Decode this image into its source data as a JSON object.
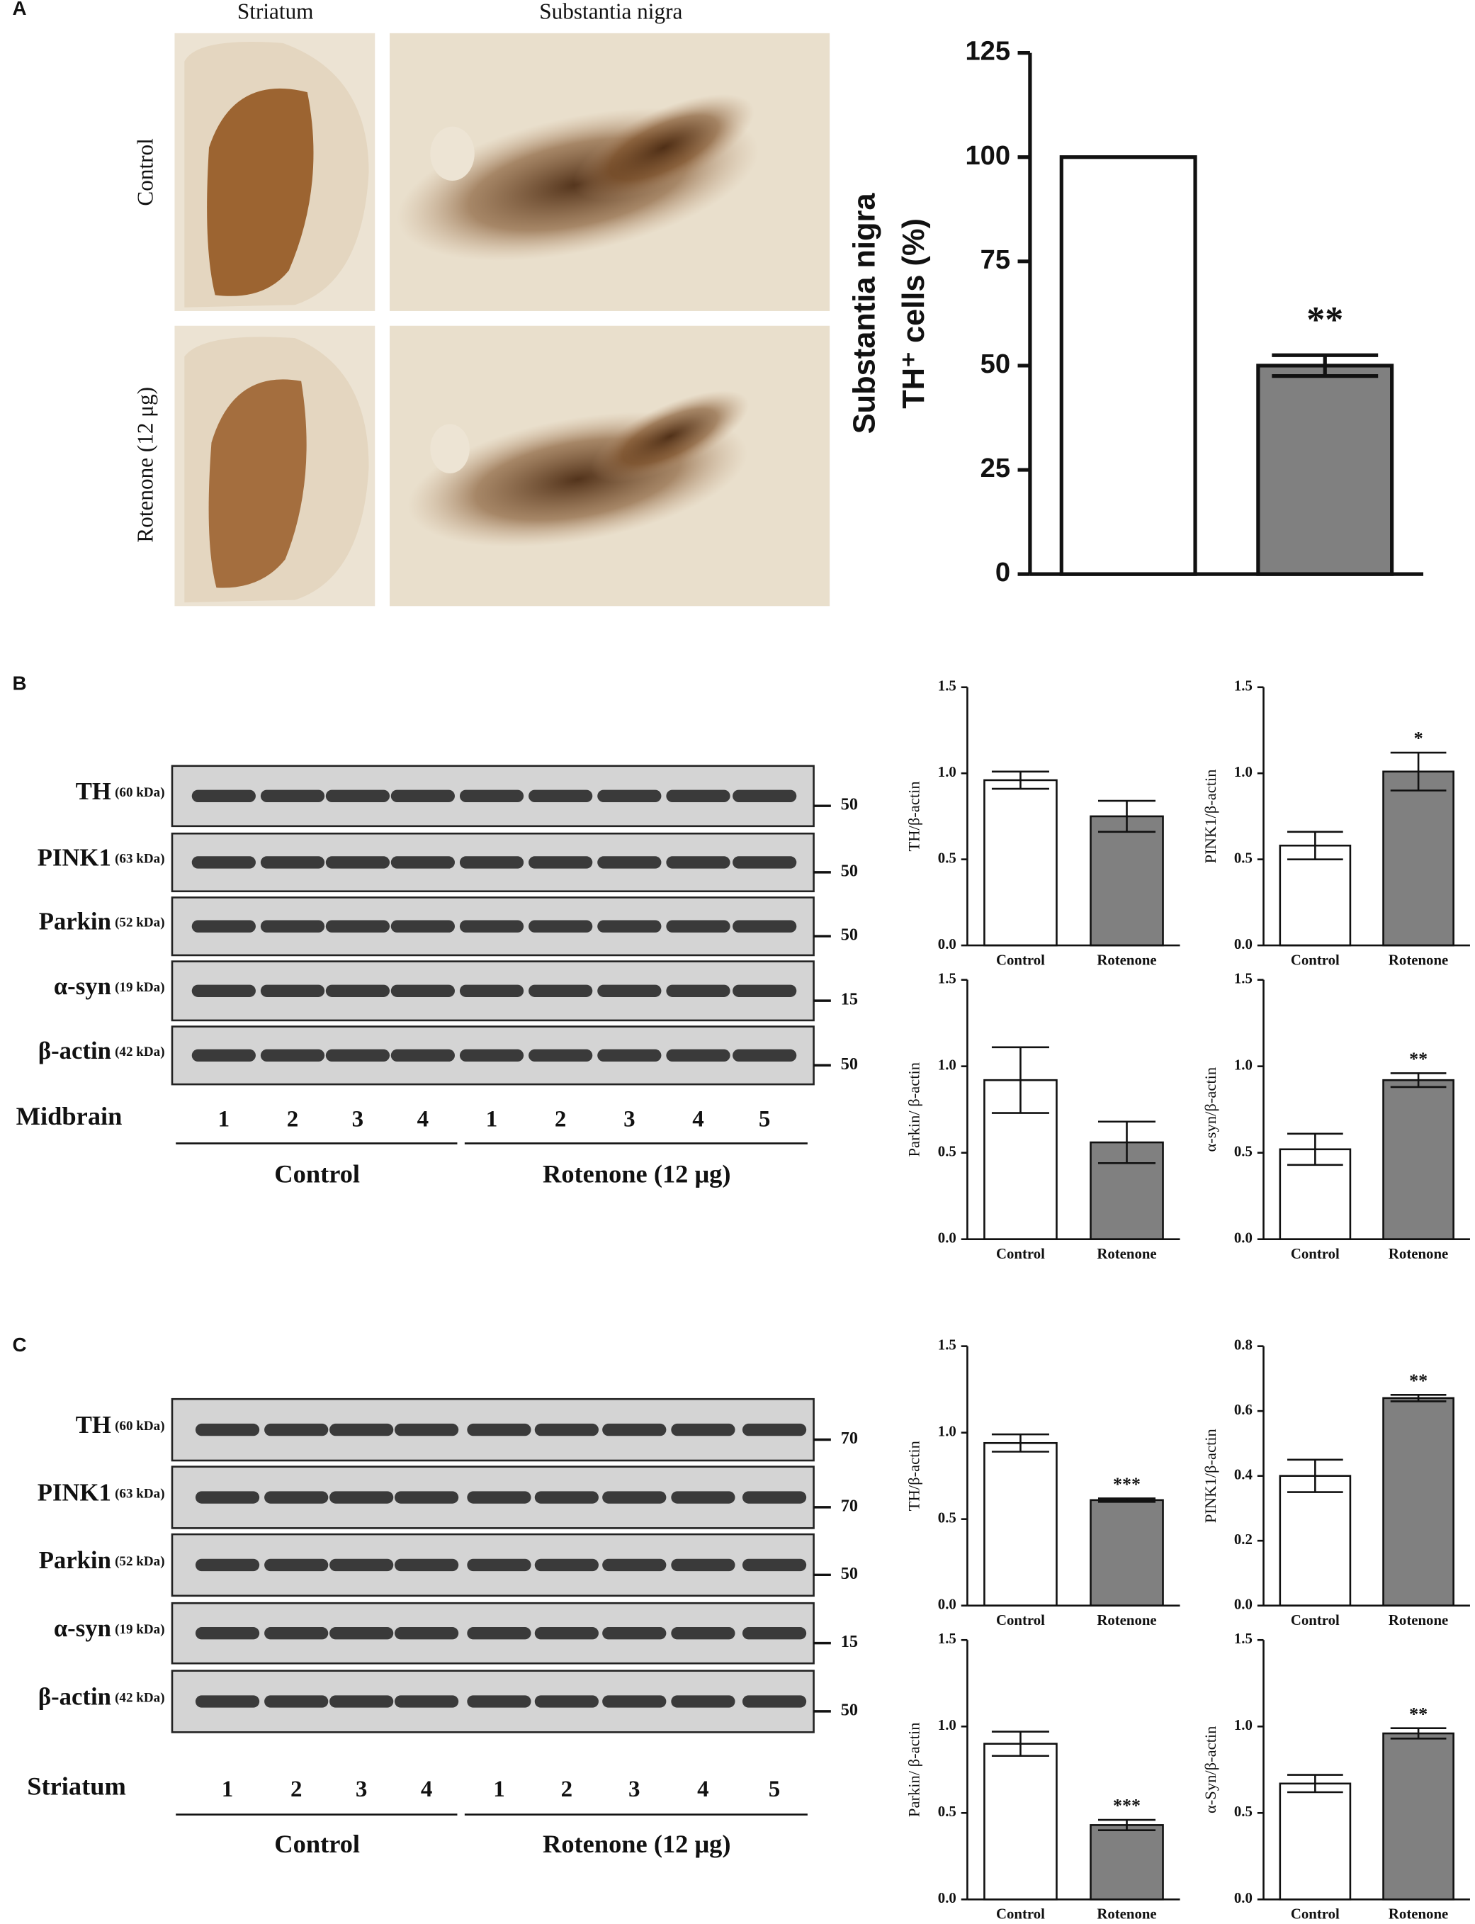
{
  "figure": {
    "panel_labels": [
      "A",
      "B",
      "C"
    ],
    "micrographs": {
      "columns": [
        "Striatum",
        "Substantia nigra"
      ],
      "rows": [
        "Control",
        "Rotenone (12 μg)"
      ]
    },
    "blots": [
      {
        "tissue": "Midbrain",
        "proteins": [
          {
            "name": "TH",
            "kda": "(60 kDa)",
            "marker": "50"
          },
          {
            "name": "PINK1",
            "kda": "(63 kDa)",
            "marker": "50"
          },
          {
            "name": "Parkin",
            "kda": "(52 kDa)",
            "marker": "50"
          },
          {
            "name": "α-syn",
            "kda": "(19 kDa)",
            "marker": "15"
          },
          {
            "name": "β-actin",
            "kda": "(42 kDa)",
            "marker": "50"
          }
        ],
        "lanes": [
          "1",
          "2",
          "3",
          "4",
          "1",
          "2",
          "3",
          "4",
          "5"
        ],
        "groups": [
          "Control",
          "Rotenone (12 μg)"
        ]
      },
      {
        "tissue": "Striatum",
        "proteins": [
          {
            "name": "TH",
            "kda": "(60 kDa)",
            "marker": "70"
          },
          {
            "name": "PINK1",
            "kda": "(63 kDa)",
            "marker": "70"
          },
          {
            "name": "Parkin",
            "kda": "(52 kDa)",
            "marker": "50"
          },
          {
            "name": "α-syn",
            "kda": "(19 kDa)",
            "marker": "15"
          },
          {
            "name": "β-actin",
            "kda": "(42 kDa)",
            "marker": "50"
          }
        ],
        "lanes": [
          "1",
          "2",
          "3",
          "4",
          "1",
          "2",
          "3",
          "4",
          "5"
        ],
        "groups": [
          "Control",
          "Rotenone (12 μg)"
        ]
      }
    ]
  },
  "chart_data": [
    {
      "type": "bar",
      "ylabel": [
        "Substantia nigra",
        "TH⁺ cells (%)"
      ],
      "categories": [
        null,
        null
      ],
      "values": [
        100,
        50
      ],
      "errors": [
        null,
        2.5
      ],
      "colors": [
        "#ffffff",
        "#808080"
      ],
      "significance": [
        null,
        "**"
      ],
      "ylim": [
        0,
        125
      ],
      "yticks": [
        0,
        25,
        50,
        75,
        100,
        125
      ]
    },
    {
      "type": "bar",
      "ylabel": "TH/β-actin",
      "categories": [
        "Control",
        "Rotenone"
      ],
      "values": [
        0.96,
        0.75
      ],
      "errors": [
        0.05,
        0.09
      ],
      "colors": [
        "#ffffff",
        "#808080"
      ],
      "ylim": [
        0,
        1.5
      ],
      "yticks": [
        {
          "value": 0,
          "label": "0.0"
        },
        {
          "value": 0.5,
          "label": "0.5"
        },
        {
          "value": 1,
          "label": "1.0"
        },
        {
          "value": 1.5,
          "label": "1.5"
        }
      ]
    },
    {
      "type": "bar",
      "ylabel": "PINK1/β-actin",
      "categories": [
        "Control",
        "Rotenone"
      ],
      "values": [
        0.58,
        1.01
      ],
      "errors": [
        0.08,
        0.11
      ],
      "colors": [
        "#ffffff",
        "#808080"
      ],
      "significance": [
        null,
        "*"
      ],
      "ylim": [
        0,
        1.5
      ],
      "yticks": [
        {
          "value": 0,
          "label": "0.0"
        },
        {
          "value": 0.5,
          "label": "0.5"
        },
        {
          "value": 1,
          "label": "1.0"
        },
        {
          "value": 1.5,
          "label": "1.5"
        }
      ]
    },
    {
      "type": "bar",
      "ylabel": "Parkin/ β-actin",
      "categories": [
        "Control",
        "Rotenone"
      ],
      "values": [
        0.92,
        0.56
      ],
      "errors": [
        0.19,
        0.12
      ],
      "colors": [
        "#ffffff",
        "#808080"
      ],
      "ylim": [
        0,
        1.5
      ],
      "yticks": [
        {
          "value": 0,
          "label": "0.0"
        },
        {
          "value": 0.5,
          "label": "0.5"
        },
        {
          "value": 1,
          "label": "1.0"
        },
        {
          "value": 1.5,
          "label": "1.5"
        }
      ]
    },
    {
      "type": "bar",
      "ylabel": "α-syn/β-actin",
      "categories": [
        "Control",
        "Rotenone"
      ],
      "values": [
        0.52,
        0.92
      ],
      "errors": [
        0.09,
        0.04
      ],
      "colors": [
        "#ffffff",
        "#808080"
      ],
      "significance": [
        null,
        "**"
      ],
      "ylim": [
        0,
        1.5
      ],
      "yticks": [
        {
          "value": 0,
          "label": "0.0"
        },
        {
          "value": 0.5,
          "label": "0.5"
        },
        {
          "value": 1,
          "label": "1.0"
        },
        {
          "value": 1.5,
          "label": "1.5"
        }
      ]
    },
    {
      "type": "bar",
      "ylabel": "TH/β-actin",
      "categories": [
        "Control",
        "Rotenone"
      ],
      "values": [
        0.94,
        0.61
      ],
      "errors": [
        0.05,
        0.01
      ],
      "colors": [
        "#ffffff",
        "#808080"
      ],
      "significance": [
        null,
        "***"
      ],
      "ylim": [
        0,
        1.5
      ],
      "yticks": [
        {
          "value": 0,
          "label": "0.0"
        },
        {
          "value": 0.5,
          "label": "0.5"
        },
        {
          "value": 1,
          "label": "1.0"
        },
        {
          "value": 1.5,
          "label": "1.5"
        }
      ]
    },
    {
      "type": "bar",
      "ylabel": "PINK1/β-actin",
      "categories": [
        "Control",
        "Rotenone"
      ],
      "values": [
        0.4,
        0.64
      ],
      "errors": [
        0.05,
        0.01
      ],
      "colors": [
        "#ffffff",
        "#808080"
      ],
      "significance": [
        null,
        "**"
      ],
      "ylim": [
        0,
        0.8
      ],
      "yticks": [
        {
          "value": 0,
          "label": "0.0"
        },
        {
          "value": 0.2,
          "label": "0.2"
        },
        {
          "value": 0.4,
          "label": "0.4"
        },
        {
          "value": 0.6,
          "label": "0.6"
        },
        {
          "value": 0.8,
          "label": "0.8"
        }
      ]
    },
    {
      "type": "bar",
      "ylabel": "Parkin/ β-actin",
      "categories": [
        "Control",
        "Rotenone"
      ],
      "values": [
        0.9,
        0.43
      ],
      "errors": [
        0.07,
        0.03
      ],
      "colors": [
        "#ffffff",
        "#808080"
      ],
      "significance": [
        null,
        "***"
      ],
      "ylim": [
        0,
        1.5
      ],
      "yticks": [
        {
          "value": 0,
          "label": "0.0"
        },
        {
          "value": 0.5,
          "label": "0.5"
        },
        {
          "value": 1,
          "label": "1.0"
        },
        {
          "value": 1.5,
          "label": "1.5"
        }
      ]
    },
    {
      "type": "bar",
      "ylabel": "α-Syn/β-actin",
      "categories": [
        "Control",
        "Rotenone"
      ],
      "values": [
        0.67,
        0.96
      ],
      "errors": [
        0.05,
        0.03
      ],
      "colors": [
        "#ffffff",
        "#808080"
      ],
      "significance": [
        null,
        "**"
      ],
      "ylim": [
        0,
        1.5
      ],
      "yticks": [
        {
          "value": 0,
          "label": "0.0"
        },
        {
          "value": 0.5,
          "label": "0.5"
        },
        {
          "value": 1,
          "label": "1.0"
        },
        {
          "value": 1.5,
          "label": "1.5"
        }
      ]
    }
  ]
}
